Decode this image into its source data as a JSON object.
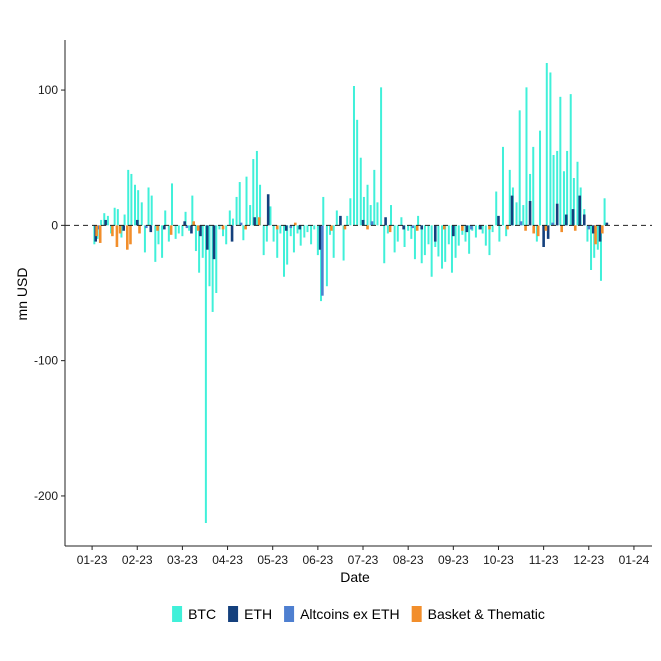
{
  "chart_data": {
    "type": "bar",
    "xlabel": "Date",
    "ylabel": "mn USD",
    "x_ticks": [
      "01-23",
      "02-23",
      "03-23",
      "04-23",
      "05-23",
      "06-23",
      "07-23",
      "08-23",
      "09-23",
      "10-23",
      "11-23",
      "12-23",
      "01-24"
    ],
    "x_range": [
      -0.6,
      12.4
    ],
    "y_ticks": [
      100,
      0,
      -100,
      -200
    ],
    "ylim": [
      -237,
      137
    ],
    "zero_line": "dashed",
    "grid": false,
    "legend_position": "bottom",
    "series": [
      {
        "name": "BTC",
        "color": "#40F0D9",
        "points": [
          [
            0.05,
            -14
          ],
          [
            0.12,
            -10
          ],
          [
            0.2,
            4
          ],
          [
            0.27,
            9
          ],
          [
            0.35,
            7
          ],
          [
            0.42,
            -6
          ],
          [
            0.5,
            13
          ],
          [
            0.57,
            12
          ],
          [
            0.65,
            -9
          ],
          [
            0.72,
            8
          ],
          [
            0.8,
            41
          ],
          [
            0.87,
            38
          ],
          [
            0.95,
            30
          ],
          [
            1.02,
            26
          ],
          [
            1.1,
            17
          ],
          [
            1.17,
            -20
          ],
          [
            1.25,
            28
          ],
          [
            1.32,
            22
          ],
          [
            1.4,
            -27
          ],
          [
            1.47,
            -14
          ],
          [
            1.55,
            -24
          ],
          [
            1.62,
            11
          ],
          [
            1.7,
            -12
          ],
          [
            1.77,
            31
          ],
          [
            1.85,
            -10
          ],
          [
            1.92,
            -6
          ],
          [
            2.0,
            -8
          ],
          [
            2.07,
            10
          ],
          [
            2.15,
            -4
          ],
          [
            2.22,
            22
          ],
          [
            2.3,
            -19
          ],
          [
            2.37,
            -35
          ],
          [
            2.45,
            -24
          ],
          [
            2.52,
            -220
          ],
          [
            2.6,
            -45
          ],
          [
            2.67,
            -64
          ],
          [
            2.75,
            -50
          ],
          [
            2.82,
            -3
          ],
          [
            2.9,
            -8
          ],
          [
            2.97,
            -14
          ],
          [
            3.05,
            11
          ],
          [
            3.12,
            5
          ],
          [
            3.2,
            21
          ],
          [
            3.27,
            32
          ],
          [
            3.35,
            -11
          ],
          [
            3.42,
            36
          ],
          [
            3.5,
            15
          ],
          [
            3.57,
            49
          ],
          [
            3.65,
            55
          ],
          [
            3.72,
            30
          ],
          [
            3.8,
            -22
          ],
          [
            3.87,
            -12
          ],
          [
            3.95,
            14
          ],
          [
            4.02,
            -12
          ],
          [
            4.1,
            -24
          ],
          [
            4.17,
            -6
          ],
          [
            4.25,
            -38
          ],
          [
            4.32,
            -29
          ],
          [
            4.4,
            -8
          ],
          [
            4.47,
            -20
          ],
          [
            4.55,
            -6
          ],
          [
            4.62,
            -15
          ],
          [
            4.7,
            -9
          ],
          [
            4.77,
            -5
          ],
          [
            4.85,
            -14
          ],
          [
            4.92,
            -3
          ],
          [
            5.0,
            -22
          ],
          [
            5.07,
            -56
          ],
          [
            5.12,
            21
          ],
          [
            5.2,
            -45
          ],
          [
            5.27,
            -7
          ],
          [
            5.35,
            -24
          ],
          [
            5.42,
            11
          ],
          [
            5.5,
            5
          ],
          [
            5.57,
            -26
          ],
          [
            5.65,
            7
          ],
          [
            5.72,
            20
          ],
          [
            5.8,
            103
          ],
          [
            5.87,
            78
          ],
          [
            5.95,
            50
          ],
          [
            6.02,
            21
          ],
          [
            6.1,
            30
          ],
          [
            6.17,
            15
          ],
          [
            6.25,
            41
          ],
          [
            6.32,
            17
          ],
          [
            6.4,
            102
          ],
          [
            6.47,
            -28
          ],
          [
            6.55,
            -6
          ],
          [
            6.62,
            15
          ],
          [
            6.7,
            -20
          ],
          [
            6.77,
            -12
          ],
          [
            6.85,
            6
          ],
          [
            6.92,
            -16
          ],
          [
            7.0,
            -4
          ],
          [
            7.07,
            -10
          ],
          [
            7.15,
            -25
          ],
          [
            7.22,
            7
          ],
          [
            7.3,
            -28
          ],
          [
            7.37,
            -22
          ],
          [
            7.45,
            -14
          ],
          [
            7.52,
            -38
          ],
          [
            7.6,
            -16
          ],
          [
            7.67,
            -23
          ],
          [
            7.75,
            -32
          ],
          [
            7.82,
            -27
          ],
          [
            7.9,
            -14
          ],
          [
            7.97,
            -35
          ],
          [
            8.05,
            -24
          ],
          [
            8.12,
            -15
          ],
          [
            8.2,
            -7
          ],
          [
            8.27,
            -12
          ],
          [
            8.35,
            -21
          ],
          [
            8.42,
            -4
          ],
          [
            8.5,
            -9
          ],
          [
            8.57,
            -3
          ],
          [
            8.65,
            -6
          ],
          [
            8.72,
            -15
          ],
          [
            8.8,
            -22
          ],
          [
            8.87,
            -5
          ],
          [
            8.95,
            25
          ],
          [
            9.02,
            -12
          ],
          [
            9.1,
            58
          ],
          [
            9.17,
            -8
          ],
          [
            9.25,
            41
          ],
          [
            9.32,
            28
          ],
          [
            9.4,
            17
          ],
          [
            9.47,
            85
          ],
          [
            9.55,
            15
          ],
          [
            9.62,
            102
          ],
          [
            9.7,
            38
          ],
          [
            9.77,
            58
          ],
          [
            9.85,
            -12
          ],
          [
            9.92,
            70
          ],
          [
            10.0,
            -4
          ],
          [
            10.07,
            120
          ],
          [
            10.15,
            113
          ],
          [
            10.22,
            52
          ],
          [
            10.3,
            55
          ],
          [
            10.37,
            95
          ],
          [
            10.45,
            40
          ],
          [
            10.52,
            55
          ],
          [
            10.6,
            97
          ],
          [
            10.67,
            35
          ],
          [
            10.75,
            47
          ],
          [
            10.82,
            28
          ],
          [
            10.9,
            12
          ],
          [
            10.97,
            -12
          ],
          [
            11.05,
            -33
          ],
          [
            11.12,
            -24
          ],
          [
            11.2,
            -18
          ],
          [
            11.27,
            -41
          ],
          [
            11.35,
            20
          ]
        ]
      },
      {
        "name": "ETH",
        "color": "#14407D",
        "points": [
          [
            0.08,
            -12
          ],
          [
            0.3,
            4
          ],
          [
            0.7,
            -4
          ],
          [
            1.0,
            4
          ],
          [
            1.3,
            -5
          ],
          [
            1.6,
            -3
          ],
          [
            2.05,
            3
          ],
          [
            2.2,
            -6
          ],
          [
            2.4,
            -8
          ],
          [
            2.55,
            -18
          ],
          [
            2.7,
            -25
          ],
          [
            3.1,
            -12
          ],
          [
            3.6,
            6
          ],
          [
            3.9,
            23
          ],
          [
            4.3,
            -4
          ],
          [
            4.6,
            -3
          ],
          [
            5.05,
            -18
          ],
          [
            5.5,
            7
          ],
          [
            6.0,
            4
          ],
          [
            6.5,
            6
          ],
          [
            6.9,
            -3
          ],
          [
            7.3,
            -3
          ],
          [
            7.6,
            -12
          ],
          [
            8.0,
            -8
          ],
          [
            8.3,
            -5
          ],
          [
            8.6,
            -3
          ],
          [
            9.0,
            7
          ],
          [
            9.3,
            22
          ],
          [
            9.7,
            18
          ],
          [
            10.0,
            -16
          ],
          [
            10.1,
            -10
          ],
          [
            10.3,
            16
          ],
          [
            10.5,
            8
          ],
          [
            10.65,
            12
          ],
          [
            10.8,
            22
          ],
          [
            10.9,
            8
          ],
          [
            11.1,
            -6
          ],
          [
            11.25,
            -12
          ],
          [
            11.4,
            2
          ]
        ]
      },
      {
        "name": "Altcoins ex ETH",
        "color": "#4E7FD0",
        "points": [
          [
            0.15,
            -3
          ],
          [
            1.2,
            -2
          ],
          [
            2.1,
            -2
          ],
          [
            3.3,
            2
          ],
          [
            4.4,
            -2
          ],
          [
            5.1,
            -52
          ],
          [
            6.2,
            3
          ],
          [
            7.1,
            -2
          ],
          [
            8.4,
            -3
          ],
          [
            9.5,
            3
          ],
          [
            10.2,
            2
          ],
          [
            11.0,
            -3
          ]
        ]
      },
      {
        "name": "Basket & Thematic",
        "color": "#F28E2B",
        "points": [
          [
            0.1,
            -8
          ],
          [
            0.18,
            -13
          ],
          [
            0.45,
            -8
          ],
          [
            0.55,
            -16
          ],
          [
            0.62,
            -6
          ],
          [
            0.78,
            -18
          ],
          [
            0.85,
            -14
          ],
          [
            1.05,
            -6
          ],
          [
            1.45,
            -4
          ],
          [
            1.75,
            -7
          ],
          [
            2.25,
            3
          ],
          [
            2.35,
            -4
          ],
          [
            2.9,
            -3
          ],
          [
            3.4,
            -3
          ],
          [
            3.7,
            6
          ],
          [
            4.1,
            -3
          ],
          [
            4.5,
            2
          ],
          [
            5.3,
            -4
          ],
          [
            5.6,
            -3
          ],
          [
            6.1,
            -3
          ],
          [
            6.6,
            -5
          ],
          [
            7.2,
            -4
          ],
          [
            7.8,
            -3
          ],
          [
            8.2,
            -4
          ],
          [
            8.8,
            -3
          ],
          [
            9.2,
            -3
          ],
          [
            9.6,
            -4
          ],
          [
            9.78,
            -6
          ],
          [
            9.88,
            -8
          ],
          [
            10.05,
            -4
          ],
          [
            10.4,
            -5
          ],
          [
            10.7,
            -4
          ],
          [
            11.15,
            -14
          ],
          [
            11.3,
            -6
          ]
        ]
      }
    ]
  },
  "legend": {
    "items": [
      {
        "label": "BTC",
        "color": "#40F0D9"
      },
      {
        "label": "ETH",
        "color": "#14407D"
      },
      {
        "label": "Altcoins ex ETH",
        "color": "#4E7FD0"
      },
      {
        "label": "Basket & Thematic",
        "color": "#F28E2B"
      }
    ]
  }
}
